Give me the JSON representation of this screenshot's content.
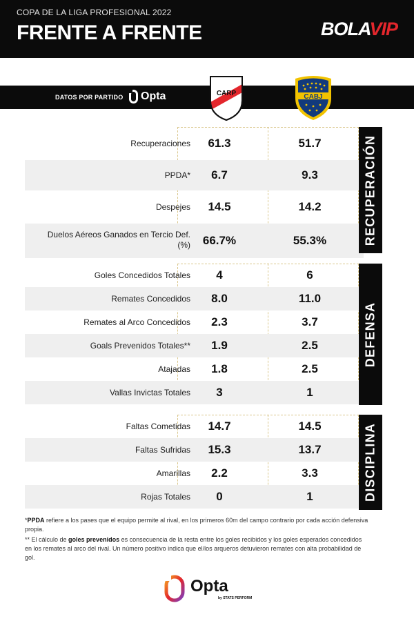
{
  "header": {
    "subtitle": "COPA DE LA LIGA PROFESIONAL 2022",
    "title": "FRENTE A FRENTE",
    "brand_bola": "BOLA",
    "brand_vip": "VIP"
  },
  "teams_bar": {
    "datos_label": "DATOS POR PARTIDO",
    "provider": "Opta",
    "team1_crest_text": "CARP",
    "team2_crest_text": "CABJ"
  },
  "sections": [
    {
      "name": "RECUPERACIÓN",
      "rows": [
        {
          "label": "Recuperaciones",
          "v1": "61.3",
          "v2": "51.7"
        },
        {
          "label": "PPDA*",
          "v1": "6.7",
          "v2": "9.3"
        },
        {
          "label": "Despejes",
          "v1": "14.5",
          "v2": "14.2"
        },
        {
          "label": "Duelos Aéreos Ganados en Tercio Def. (%)",
          "v1": "66.7%",
          "v2": "55.3%"
        }
      ]
    },
    {
      "name": "DEFENSA",
      "rows": [
        {
          "label": "Goles Concedidos Totales",
          "v1": "4",
          "v2": "6"
        },
        {
          "label": "Remates Concedidos",
          "v1": "8.0",
          "v2": "11.0"
        },
        {
          "label": "Remates al Arco Concedidos",
          "v1": "2.3",
          "v2": "3.7"
        },
        {
          "label": "Goals Prevenidos Totales**",
          "v1": "1.9",
          "v2": "2.5"
        },
        {
          "label": "Atajadas",
          "v1": "1.8",
          "v2": "2.5"
        },
        {
          "label": "Vallas Invictas Totales",
          "v1": "3",
          "v2": "1"
        }
      ]
    },
    {
      "name": "DISCIPLINA",
      "rows": [
        {
          "label": "Faltas Cometidas",
          "v1": "14.7",
          "v2": "14.5"
        },
        {
          "label": "Faltas Sufridas",
          "v1": "15.3",
          "v2": "13.7"
        },
        {
          "label": "Amarillas",
          "v1": "2.2",
          "v2": "3.3"
        },
        {
          "label": "Rojas Totales",
          "v1": "0",
          "v2": "1"
        }
      ]
    }
  ],
  "notes": {
    "n1_prefix": "*",
    "n1_term": "PPDA",
    "n1_text": " refiere a los pases que el equipo permite al rival, en los primeros 60m del campo contrario por cada acción defensiva propia.",
    "n2_prefix": "** El cálculo de ",
    "n2_term": "goles prevenidos",
    "n2_text": " es consecuencia de la resta entre los goles recibidos y los goles esperados concedidos en los remates al arco del rival. Un número positivo indica que el/los arqueros detuvieron remates con alta probabilidad de gol."
  },
  "footer": {
    "opta": "Opta",
    "opta_by": "by STATS PERFORM"
  },
  "colors": {
    "river_red": "#e3262c",
    "boca_blue": "#123a7c",
    "boca_gold": "#f2c300",
    "bolavip_red": "#e3262c"
  }
}
